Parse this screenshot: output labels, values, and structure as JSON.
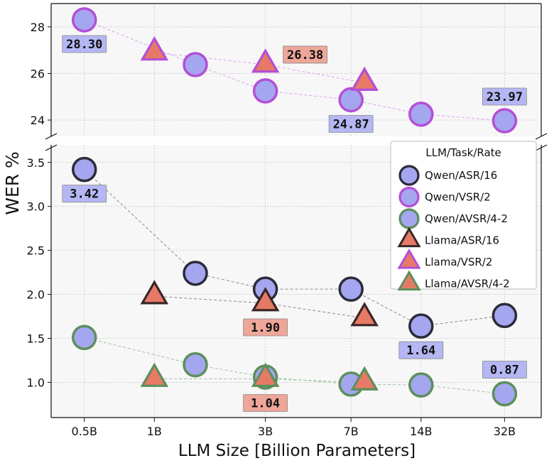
{
  "chart_data": {
    "type": "scatter",
    "xlabel": "LLM Size [Billion Parameters]",
    "ylabel": "WER %",
    "x_scale": "log",
    "x_ticks": [
      0.5,
      1,
      3,
      7,
      14,
      32
    ],
    "x_tick_labels": [
      "0.5B",
      "1B",
      "3B",
      "7B",
      "14B",
      "32B"
    ],
    "panels": {
      "top": {
        "ylim": [
          23.3,
          29.0
        ],
        "yticks": [
          24,
          26,
          28
        ],
        "ytick_labels": [
          "24",
          "26",
          "28"
        ]
      },
      "bottom": {
        "ylim": [
          0.6,
          3.7
        ],
        "yticks": [
          1.0,
          1.5,
          2.0,
          2.5,
          3.0,
          3.5
        ],
        "ytick_labels": [
          "1.0",
          "1.5",
          "2.0",
          "2.5",
          "3.0",
          "3.5"
        ]
      }
    },
    "grid": true,
    "legend": {
      "title": "LLM/Task/Rate",
      "placement": "right"
    },
    "series": [
      {
        "name": "Qwen/ASR/16",
        "marker": "circle",
        "fill": "#a4a6ef",
        "edge": "#2b2b3a",
        "panel": "bottom",
        "line": "#8a8a8a",
        "x": [
          0.5,
          1.5,
          3,
          7,
          14,
          32
        ],
        "y": [
          3.42,
          2.24,
          2.06,
          2.06,
          1.64,
          1.76
        ]
      },
      {
        "name": "Qwen/VSR/2",
        "marker": "circle",
        "fill": "#a4a6ef",
        "edge": "#b34fd6",
        "panel": "top",
        "line": "#d9a2ee",
        "x": [
          0.5,
          1.5,
          3,
          7,
          14,
          32
        ],
        "y": [
          28.3,
          26.38,
          25.25,
          24.87,
          24.25,
          23.97
        ]
      },
      {
        "name": "Qwen/AVSR/4-2",
        "marker": "circle",
        "fill": "#a4a6ef",
        "edge": "#5c8f5c",
        "panel": "bottom",
        "line": "#9cc29c",
        "x": [
          0.5,
          1.5,
          3,
          7,
          14,
          32
        ],
        "y": [
          1.51,
          1.2,
          1.06,
          0.98,
          0.97,
          0.87
        ]
      },
      {
        "name": "Llama/ASR/16",
        "marker": "triangle",
        "fill": "#e77a66",
        "edge": "#3a2626",
        "panel": "bottom",
        "line": "#8a8a8a",
        "x": [
          1,
          3,
          8
        ],
        "y": [
          1.98,
          1.9,
          1.73
        ]
      },
      {
        "name": "Llama/VSR/2",
        "marker": "triangle",
        "fill": "#e77a66",
        "edge": "#b34fd6",
        "panel": "top",
        "line": "#d9a2ee",
        "x": [
          1,
          3,
          8
        ],
        "y": [
          26.9,
          26.38,
          25.6
        ]
      },
      {
        "name": "Llama/AVSR/4-2",
        "marker": "triangle",
        "fill": "#e77a66",
        "edge": "#5c8f5c",
        "panel": "bottom",
        "line": "#9cc29c",
        "x": [
          1,
          3,
          8
        ],
        "y": [
          1.04,
          1.04,
          1.0
        ]
      }
    ],
    "annotations": [
      {
        "text": "28.30",
        "panel": "top",
        "x": 0.5,
        "y": 28.3,
        "box_color": "#b5b7f4",
        "anchor": "below"
      },
      {
        "text": "26.38",
        "panel": "top",
        "x": 3,
        "y": 26.38,
        "box_color": "#eea699",
        "anchor": "right"
      },
      {
        "text": "24.87",
        "panel": "top",
        "x": 7,
        "y": 24.87,
        "box_color": "#b5b7f4",
        "anchor": "below"
      },
      {
        "text": "23.97",
        "panel": "top",
        "x": 32,
        "y": 23.97,
        "box_color": "#b5b7f4",
        "anchor": "above"
      },
      {
        "text": "3.42",
        "panel": "bottom",
        "x": 0.5,
        "y": 3.42,
        "box_color": "#b5b7f4",
        "anchor": "below"
      },
      {
        "text": "1.90",
        "panel": "bottom",
        "x": 3,
        "y": 1.9,
        "box_color": "#eea699",
        "anchor": "below"
      },
      {
        "text": "1.64",
        "panel": "bottom",
        "x": 14,
        "y": 1.64,
        "box_color": "#b5b7f4",
        "anchor": "below"
      },
      {
        "text": "0.87",
        "panel": "bottom",
        "x": 32,
        "y": 0.87,
        "box_color": "#b5b7f4",
        "anchor": "above"
      },
      {
        "text": "1.04",
        "panel": "bottom",
        "x": 3,
        "y": 1.04,
        "box_color": "#eea699",
        "anchor": "below"
      }
    ]
  }
}
